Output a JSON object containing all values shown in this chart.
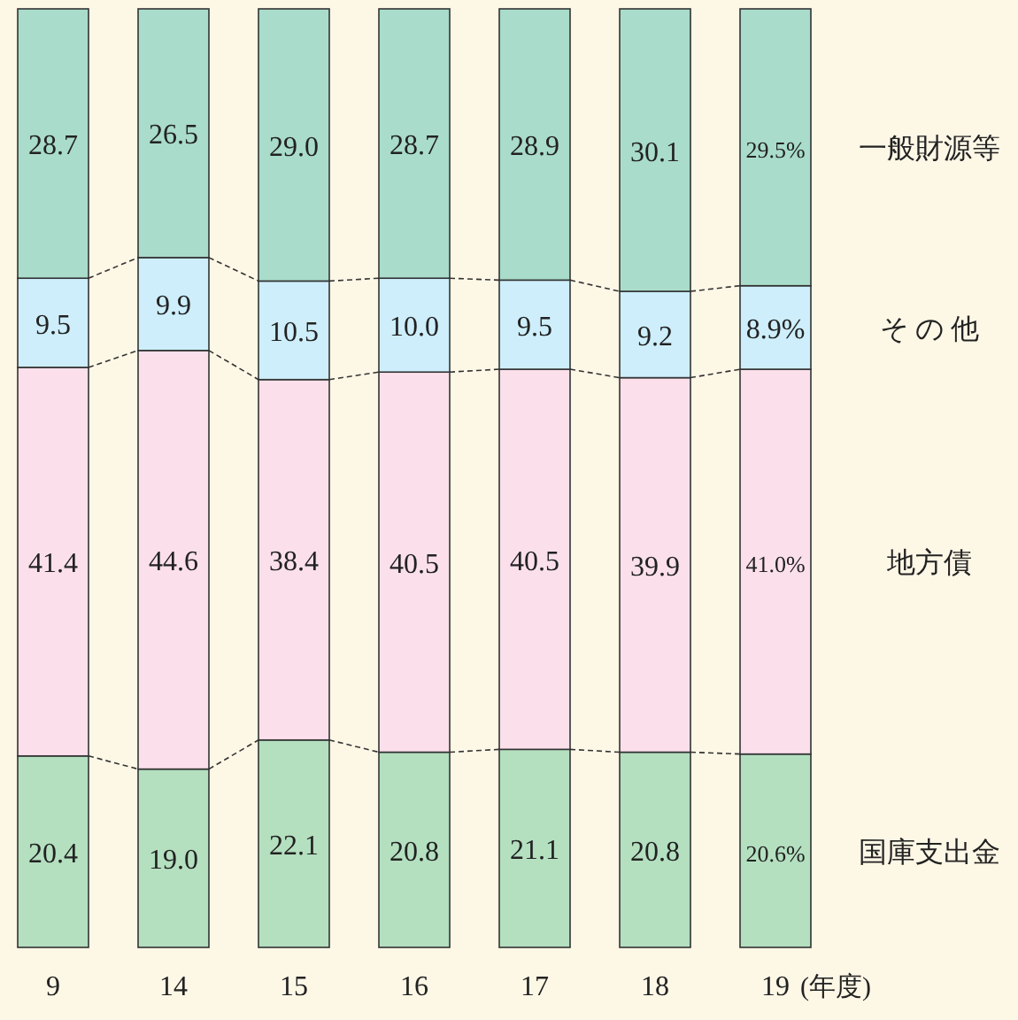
{
  "chart_data": {
    "type": "bar",
    "stacked": true,
    "xlabel": "(年度)",
    "categories": [
      "9",
      "14",
      "15",
      "16",
      "17",
      "18",
      "19"
    ],
    "series": [
      {
        "name": "国庫支出金",
        "color": "#b4e0c0",
        "values": [
          20.4,
          19.0,
          22.1,
          20.8,
          21.1,
          20.8,
          20.6
        ],
        "value_labels": [
          "20.4",
          "19.0",
          "22.1",
          "20.8",
          "21.1",
          "20.8",
          "20.6%"
        ]
      },
      {
        "name": "地方債",
        "color": "#fbe0ec",
        "values": [
          41.4,
          44.6,
          38.4,
          40.5,
          40.5,
          39.9,
          41.0
        ],
        "value_labels": [
          "41.4",
          "44.6",
          "38.4",
          "40.5",
          "40.5",
          "39.9",
          "41.0%"
        ]
      },
      {
        "name": "そ の 他",
        "color": "#cdeefa",
        "values": [
          9.5,
          9.9,
          10.5,
          10.0,
          9.5,
          9.2,
          8.9
        ],
        "value_labels": [
          "9.5",
          "9.9",
          "10.5",
          "10.0",
          "9.5",
          "9.2",
          "8.9%"
        ]
      },
      {
        "name": "一般財源等",
        "color": "#a9dcca",
        "values": [
          28.7,
          26.5,
          29.0,
          28.7,
          28.9,
          30.1,
          29.5
        ],
        "value_labels": [
          "28.7",
          "26.5",
          "29.0",
          "28.7",
          "28.9",
          "30.1",
          "29.5%"
        ]
      }
    ]
  }
}
